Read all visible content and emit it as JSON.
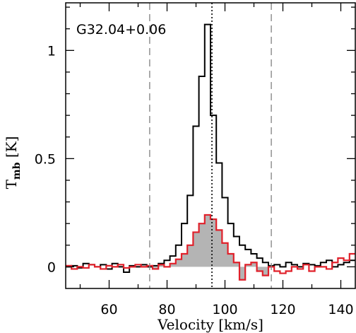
{
  "chart_data": {
    "type": "line",
    "source_label": "G32.04+0.06",
    "xlabel": "Velocity [km/s]",
    "ylabel": "T",
    "ylabel_sub": "mb",
    "ylabel_unit": "[K]",
    "xlim": [
      45,
      145
    ],
    "ylim": [
      -0.1,
      1.22
    ],
    "x_ticks": [
      60,
      80,
      100,
      120,
      140
    ],
    "y_ticks": [
      0,
      0.5,
      1
    ],
    "y_tick_labels": [
      "0",
      "0.5",
      "1"
    ],
    "vlines": [
      {
        "x": 74,
        "style": "dashed",
        "color": "#888888"
      },
      {
        "x": 95.5,
        "style": "dotted",
        "color": "#000000"
      },
      {
        "x": 116,
        "style": "dashed",
        "color": "#888888"
      }
    ],
    "bin_width": 2,
    "series": [
      {
        "color": "#000000",
        "shade": false,
        "x": [
          46,
          48,
          50,
          52,
          54,
          56,
          58,
          60,
          62,
          64,
          66,
          68,
          70,
          72,
          74,
          76,
          78,
          80,
          82,
          84,
          86,
          88,
          90,
          92,
          94,
          96,
          98,
          100,
          102,
          104,
          106,
          108,
          110,
          112,
          114,
          116,
          118,
          120,
          122,
          124,
          126,
          128,
          130,
          132,
          134,
          136,
          138,
          140,
          142,
          144
        ],
        "values": [
          0.0,
          0.005,
          -0.005,
          0.015,
          0.01,
          0.0,
          0.01,
          -0.01,
          0.015,
          0.0,
          -0.025,
          0.005,
          0.0,
          0.01,
          0.0,
          0.005,
          0.015,
          0.03,
          0.05,
          0.1,
          0.2,
          0.33,
          0.65,
          0.88,
          1.12,
          0.7,
          0.48,
          0.32,
          0.2,
          0.14,
          0.1,
          0.08,
          0.06,
          0.04,
          0.02,
          0.005,
          0.01,
          0.0,
          0.02,
          0.01,
          0.0,
          0.015,
          0.01,
          0.005,
          0.02,
          0.03,
          0.0,
          0.01,
          0.02,
          0.03
        ]
      },
      {
        "color": "#e0202a",
        "shade": true,
        "shade_color": "#b4b4b4",
        "shade_range": [
          74,
          116
        ],
        "x": [
          46,
          48,
          50,
          52,
          54,
          56,
          58,
          60,
          62,
          64,
          66,
          68,
          70,
          72,
          74,
          76,
          78,
          80,
          82,
          84,
          86,
          88,
          90,
          92,
          94,
          96,
          98,
          100,
          102,
          104,
          106,
          108,
          110,
          112,
          114,
          116,
          118,
          120,
          122,
          124,
          126,
          128,
          130,
          132,
          134,
          136,
          138,
          140,
          142,
          144
        ],
        "values": [
          0.005,
          -0.01,
          0.0,
          -0.005,
          0.01,
          0.0,
          -0.01,
          0.005,
          0.0,
          0.01,
          -0.005,
          0.0,
          0.01,
          0.0,
          0.005,
          -0.01,
          0.01,
          0.0,
          0.015,
          0.035,
          0.06,
          0.1,
          0.16,
          0.2,
          0.24,
          0.22,
          0.17,
          0.11,
          0.06,
          0.02,
          -0.06,
          0.01,
          0.02,
          -0.02,
          -0.04,
          0.0,
          -0.02,
          -0.03,
          -0.02,
          0.0,
          -0.01,
          0.01,
          -0.02,
          0.0,
          0.0,
          -0.01,
          0.02,
          0.04,
          0.03,
          0.06
        ]
      }
    ]
  }
}
